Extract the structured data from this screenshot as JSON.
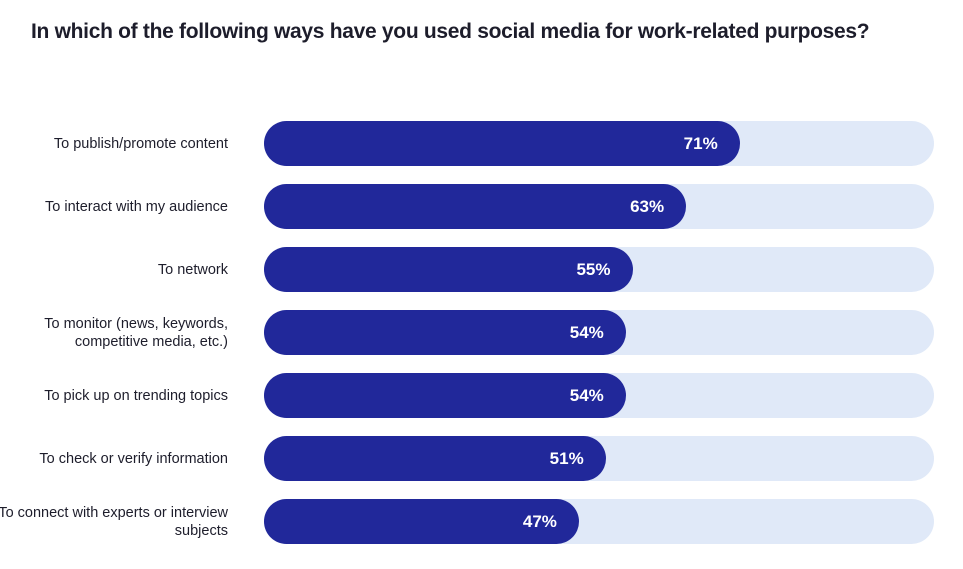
{
  "chart_data": {
    "type": "bar",
    "orientation": "horizontal",
    "title": "In which of the following ways have you used social media for work-related purposes?",
    "categories": [
      "To publish/promote content",
      "To interact with my audience",
      "To network",
      "To monitor (news, keywords, competitive media, etc.)",
      "To pick up on trending topics",
      "To check or verify information",
      "To connect with experts or interview subjects"
    ],
    "values": [
      71,
      63,
      55,
      54,
      54,
      51,
      47
    ],
    "value_labels": [
      "71%",
      "63%",
      "55%",
      "54%",
      "54%",
      "51%",
      "47%"
    ],
    "xlim": [
      0,
      100
    ],
    "grid": false,
    "colors": {
      "bar": "#21289a",
      "track": "#e0e9f8"
    }
  }
}
